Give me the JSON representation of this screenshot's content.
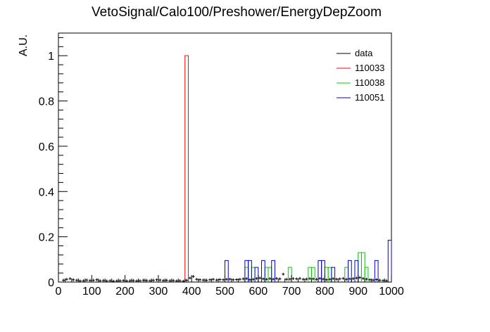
{
  "chart_data": {
    "type": "histogram",
    "title": "VetoSignal/Calo100/Preshower/EnergyDepZoom",
    "xlabel": "",
    "ylabel": "A.U.",
    "xlim": [
      0,
      1000
    ],
    "ylim": [
      0,
      1.1
    ],
    "x_ticks": [
      0,
      100,
      200,
      300,
      400,
      500,
      600,
      700,
      800,
      900,
      1000
    ],
    "x_tick_labels": [
      "0",
      "100",
      "200",
      "300",
      "400",
      "500",
      "600",
      "700",
      "800",
      "900",
      "1000"
    ],
    "y_ticks": [
      0,
      0.2,
      0.4,
      0.6,
      0.8,
      1
    ],
    "y_tick_labels": [
      "0",
      "0.2",
      "0.4",
      "0.6",
      "0.8",
      "1"
    ],
    "grid": false,
    "legend_position": "top-right",
    "bin_width": 10,
    "colors": {
      "data": "#000000",
      "110033": "#ff0000",
      "110038": "#00cc00",
      "110051": "#0000cc"
    },
    "series": [
      {
        "name": "data",
        "style": "points",
        "points": [
          [
            15,
            0.008
          ],
          [
            25,
            0.012
          ],
          [
            35,
            0.015
          ],
          [
            45,
            0.01
          ],
          [
            55,
            0.008
          ],
          [
            65,
            0.005
          ],
          [
            75,
            0.006
          ],
          [
            85,
            0.009
          ],
          [
            95,
            0.007
          ],
          [
            105,
            0.008
          ],
          [
            115,
            0.01
          ],
          [
            125,
            0.006
          ],
          [
            135,
            0.007
          ],
          [
            145,
            0.005
          ],
          [
            155,
            0.006
          ],
          [
            165,
            0.004
          ],
          [
            175,
            0.005
          ],
          [
            185,
            0.006
          ],
          [
            195,
            0.007
          ],
          [
            205,
            0.005
          ],
          [
            215,
            0.006
          ],
          [
            225,
            0.007
          ],
          [
            235,
            0.005
          ],
          [
            245,
            0.006
          ],
          [
            255,
            0.008
          ],
          [
            265,
            0.007
          ],
          [
            275,
            0.006
          ],
          [
            285,
            0.008
          ],
          [
            295,
            0.01
          ],
          [
            305,
            0.009
          ],
          [
            315,
            0.007
          ],
          [
            325,
            0.008
          ],
          [
            335,
            0.006
          ],
          [
            345,
            0.007
          ],
          [
            355,
            0.005
          ],
          [
            365,
            0.006
          ],
          [
            375,
            0.004
          ],
          [
            385,
            0.008
          ],
          [
            395,
            0.018
          ],
          [
            405,
            0.025
          ],
          [
            415,
            0.012
          ],
          [
            425,
            0.01
          ],
          [
            435,
            0.009
          ],
          [
            445,
            0.008
          ],
          [
            455,
            0.01
          ],
          [
            465,
            0.012
          ],
          [
            475,
            0.009
          ],
          [
            485,
            0.011
          ],
          [
            495,
            0.01
          ],
          [
            505,
            0.012
          ],
          [
            515,
            0.013
          ],
          [
            525,
            0.01
          ],
          [
            535,
            0.011
          ],
          [
            545,
            0.012
          ],
          [
            555,
            0.014
          ],
          [
            565,
            0.015
          ],
          [
            575,
            0.01
          ],
          [
            585,
            0.012
          ],
          [
            595,
            0.016
          ],
          [
            605,
            0.018
          ],
          [
            615,
            0.014
          ],
          [
            625,
            0.012
          ],
          [
            635,
            0.015
          ],
          [
            645,
            0.013
          ],
          [
            655,
            0.016
          ],
          [
            665,
            0.014
          ],
          [
            675,
            0.035
          ],
          [
            685,
            0.012
          ],
          [
            695,
            0.013
          ],
          [
            705,
            0.015
          ],
          [
            715,
            0.014
          ],
          [
            725,
            0.016
          ],
          [
            735,
            0.012
          ],
          [
            745,
            0.013
          ],
          [
            755,
            0.015
          ],
          [
            765,
            0.014
          ],
          [
            775,
            0.012
          ],
          [
            785,
            0.016
          ],
          [
            795,
            0.013
          ],
          [
            805,
            0.01
          ],
          [
            815,
            0.012
          ],
          [
            825,
            0.015
          ],
          [
            835,
            0.013
          ],
          [
            845,
            0.014
          ],
          [
            855,
            0.016
          ],
          [
            865,
            0.012
          ],
          [
            875,
            0.014
          ],
          [
            885,
            0.015
          ],
          [
            895,
            0.018
          ],
          [
            905,
            0.02
          ],
          [
            915,
            0.016
          ],
          [
            925,
            0.013
          ],
          [
            935,
            0.01
          ],
          [
            945,
            0.009
          ],
          [
            955,
            0.011
          ],
          [
            965,
            0.008
          ],
          [
            975,
            0.007
          ],
          [
            985,
            0.006
          ]
        ]
      },
      {
        "name": "110033",
        "style": "step",
        "bins": [
          [
            380,
            1.0
          ]
        ]
      },
      {
        "name": "110038",
        "style": "step",
        "bins": [
          [
            560,
            0.065
          ],
          [
            580,
            0.065
          ],
          [
            620,
            0.065
          ],
          [
            630,
            0.065
          ],
          [
            690,
            0.065
          ],
          [
            750,
            0.065
          ],
          [
            760,
            0.065
          ],
          [
            800,
            0.065
          ],
          [
            810,
            0.065
          ],
          [
            860,
            0.065
          ],
          [
            900,
            0.13
          ],
          [
            910,
            0.13
          ],
          [
            920,
            0.065
          ]
        ]
      },
      {
        "name": "110051",
        "style": "step",
        "bins": [
          [
            500,
            0.095
          ],
          [
            560,
            0.095
          ],
          [
            570,
            0.095
          ],
          [
            590,
            0.065
          ],
          [
            610,
            0.095
          ],
          [
            640,
            0.095
          ],
          [
            780,
            0.095
          ],
          [
            790,
            0.095
          ],
          [
            820,
            0.065
          ],
          [
            870,
            0.095
          ],
          [
            890,
            0.095
          ],
          [
            950,
            0.095
          ],
          [
            990,
            0.185
          ]
        ]
      }
    ]
  }
}
